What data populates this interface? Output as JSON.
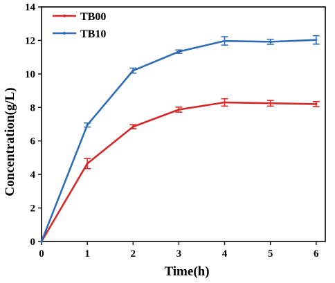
{
  "chart_data": {
    "type": "line",
    "xlabel": "Time(h)",
    "ylabel": "Concentration(g/L)",
    "xlim": [
      0,
      6.2
    ],
    "ylim": [
      0,
      14
    ],
    "xticks": [
      0,
      1,
      2,
      3,
      4,
      5,
      6
    ],
    "yticks": [
      0,
      2,
      4,
      6,
      8,
      10,
      12,
      14
    ],
    "grid": false,
    "legend_position": "top-left",
    "x": [
      0,
      1,
      2,
      3,
      4,
      5,
      6
    ],
    "series": [
      {
        "name": "TB00",
        "color": "#d62728",
        "values": [
          0,
          4.65,
          6.85,
          7.87,
          8.3,
          8.25,
          8.2
        ],
        "errors": [
          0,
          0.3,
          0.12,
          0.15,
          0.22,
          0.17,
          0.15
        ]
      },
      {
        "name": "TB10",
        "color": "#2e6db5",
        "values": [
          0,
          6.95,
          10.2,
          11.33,
          11.97,
          11.92,
          12.03
        ],
        "errors": [
          0,
          0.12,
          0.15,
          0.1,
          0.25,
          0.15,
          0.25
        ]
      }
    ]
  }
}
